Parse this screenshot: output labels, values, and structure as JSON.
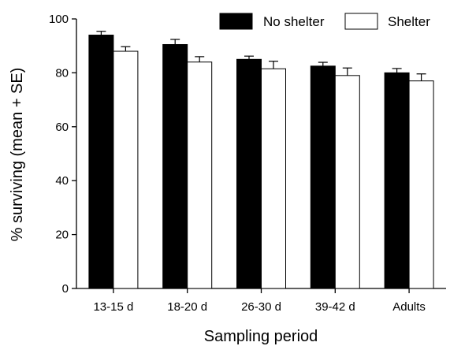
{
  "chart_data": {
    "type": "bar",
    "title": "",
    "xlabel": "Sampling period",
    "ylabel": "% surviving (mean + SE)",
    "ylim": [
      0,
      100
    ],
    "yticks": [
      0,
      20,
      40,
      60,
      80,
      100
    ],
    "categories": [
      "13-15 d",
      "18-20 d",
      "26-30 d",
      "39-42 d",
      "Adults"
    ],
    "series": [
      {
        "name": "No shelter",
        "color": "#000000",
        "values": [
          94,
          90.5,
          85,
          82.5,
          80
        ],
        "se": [
          1.4,
          1.9,
          1.2,
          1.4,
          1.6
        ]
      },
      {
        "name": "Shelter",
        "color": "#ffffff",
        "values": [
          88,
          84,
          81.5,
          79,
          77
        ],
        "se": [
          1.7,
          2.0,
          2.8,
          2.8,
          2.6
        ]
      }
    ],
    "grid": false,
    "legend": "top-right"
  }
}
